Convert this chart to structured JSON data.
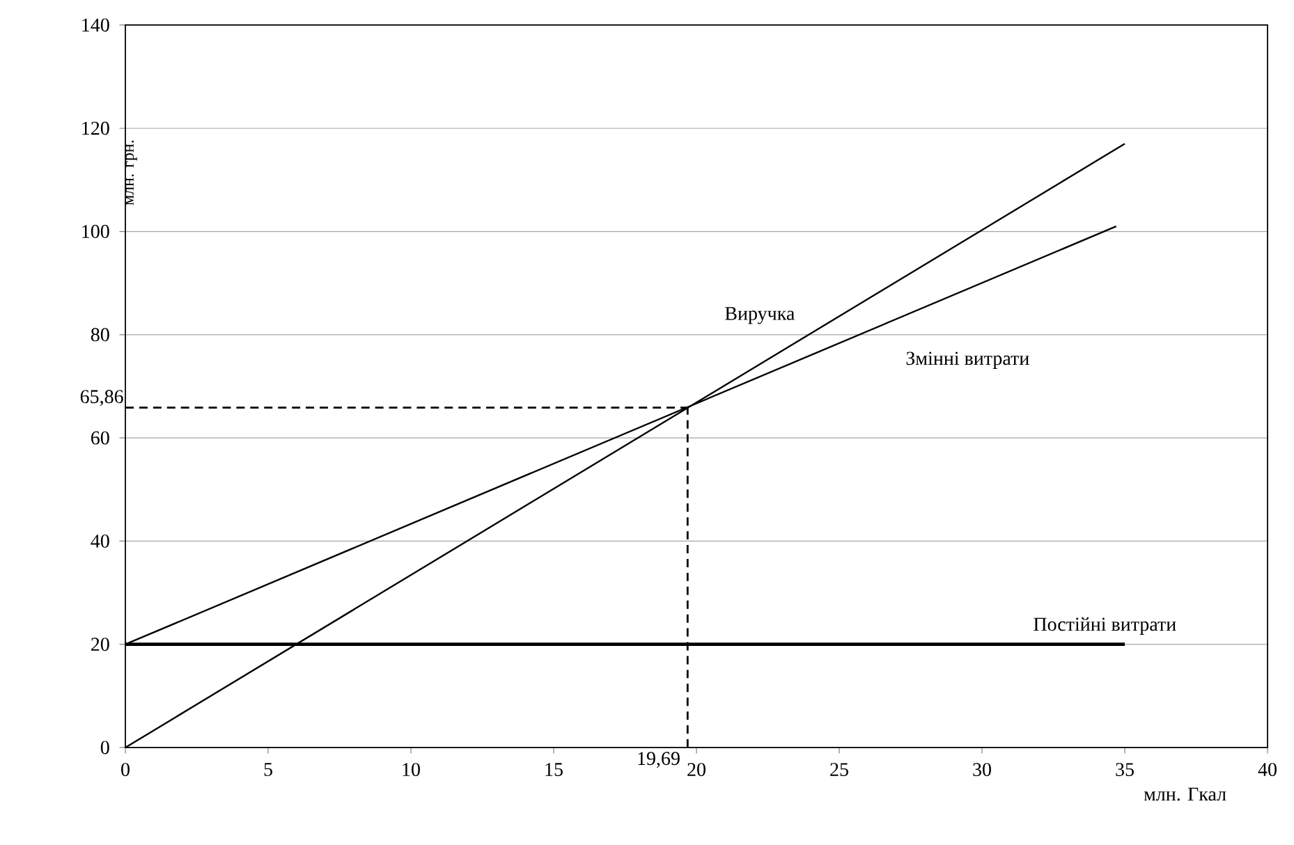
{
  "chart_data": {
    "type": "line",
    "xlabel": "млн. Гкал",
    "ylabel": "млн. грн.",
    "xlim": [
      0,
      40
    ],
    "ylim": [
      0,
      140
    ],
    "xticks": [
      0,
      5,
      10,
      15,
      20,
      25,
      30,
      35,
      40
    ],
    "yticks": [
      0,
      20,
      40,
      60,
      80,
      100,
      120,
      140
    ],
    "grid": "y",
    "legend": false,
    "marker": "none",
    "series": [
      {
        "name": "Виручка",
        "color": "#000000",
        "x": [
          0,
          35
        ],
        "values": [
          0,
          117
        ]
      },
      {
        "name": "Змінні витрати",
        "color": "#000000",
        "x": [
          0,
          34.7
        ],
        "values": [
          20,
          101
        ]
      },
      {
        "name": "Постійні витрати",
        "color": "#000000",
        "x": [
          0,
          35
        ],
        "values": [
          20,
          20
        ]
      }
    ],
    "ref_lines": [
      {
        "axis": "y",
        "value": 65.86,
        "label": "65,86",
        "line_style": "dashed",
        "color": "#000000"
      },
      {
        "axis": "x",
        "value": 19.69,
        "label": "19,69",
        "line_style": "dashed",
        "color": "#000000"
      }
    ]
  }
}
